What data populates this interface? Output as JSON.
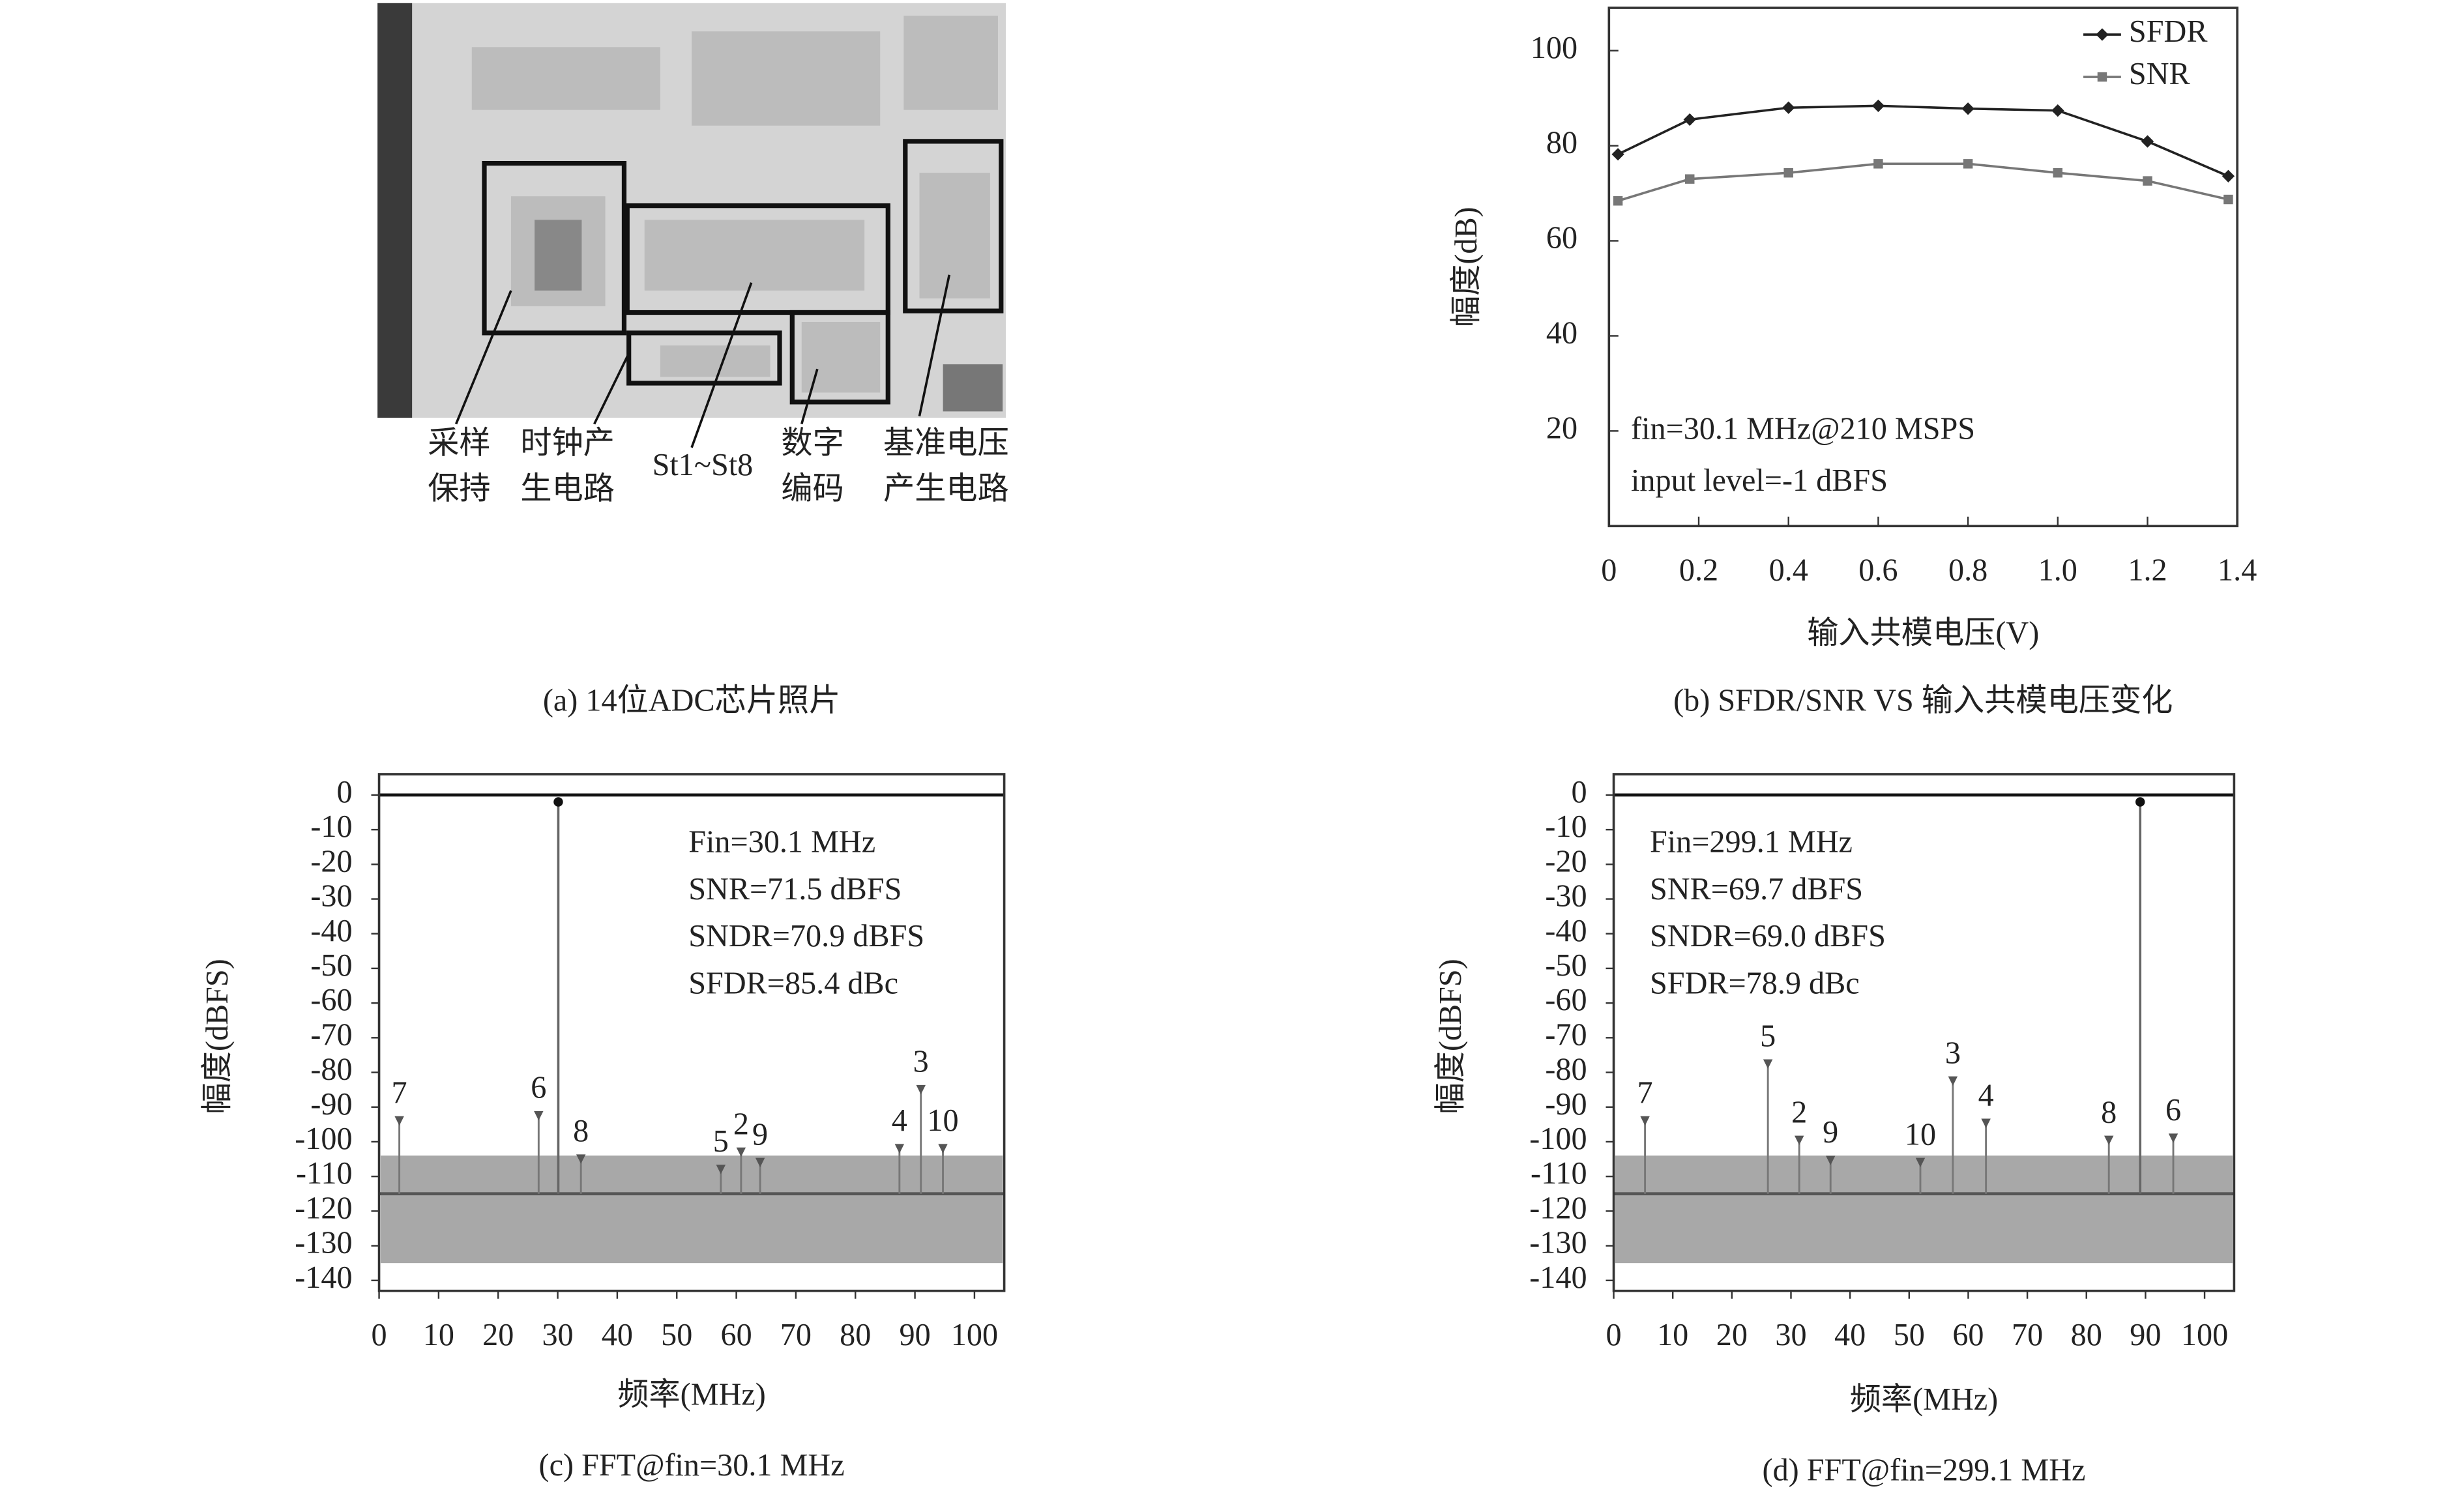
{
  "figure_a": {
    "labels": [
      [
        "采样",
        "保持"
      ],
      [
        "时钟产",
        "生电路"
      ],
      [
        "St1~St8"
      ],
      [
        "数字",
        "编码"
      ],
      [
        "基准电压",
        "产生电路"
      ]
    ],
    "caption": "(a) 14位ADC芯片照片"
  },
  "chart_data": [
    {
      "type": "line",
      "caption": "(b) SFDR/SNR VS 输入共模电压变化",
      "xlabel": "输入共模电压(V)",
      "ylabel": "幅度(dB)",
      "x": [
        0.02,
        0.18,
        0.4,
        0.6,
        0.8,
        1.0,
        1.2,
        1.38
      ],
      "series": [
        {
          "name": "SFDR",
          "color": "#222222",
          "marker": "diamond",
          "values": [
            78.2,
            85.5,
            88,
            88.4,
            87.8,
            87.4,
            80.9,
            73.6
          ]
        },
        {
          "name": "SNR",
          "color": "#777777",
          "marker": "square",
          "values": [
            68.4,
            73,
            74.3,
            76.2,
            76.2,
            74.3,
            72.6,
            68.7
          ]
        }
      ],
      "xlim": [
        0,
        1.4
      ],
      "xticks": [
        0,
        0.2,
        0.4,
        0.6,
        0.8,
        {
          "value": 1,
          "label": "1.0"
        },
        1.2,
        1.4
      ],
      "ylim": [
        0,
        109
      ],
      "yticks": [
        20,
        40,
        60,
        80,
        100
      ],
      "legend": "top-right",
      "annotations": [
        "fin=30.1 MHz@210 MSPS",
        "input level=-1 dBFS"
      ]
    },
    {
      "type": "fft",
      "caption": "(c) FFT@fin=30.1 MHz",
      "xlabel": "频率(MHz)",
      "ylabel": "幅度(dBFS)",
      "xlim": [
        0,
        105
      ],
      "xticks": [
        0,
        10,
        20,
        30,
        40,
        50,
        60,
        70,
        80,
        90,
        100
      ],
      "ylim": [
        -143,
        6
      ],
      "yticks": [
        0,
        -10,
        -20,
        -30,
        -40,
        -50,
        -60,
        -70,
        -80,
        -90,
        -100,
        -110,
        -120,
        -130,
        -140
      ],
      "full_scale": 0,
      "noise_floor": -115,
      "noise_band": [
        -135,
        -104
      ],
      "fundamental": {
        "x": 30.1,
        "value": -2
      },
      "spurs": {
        "labels": [
          7,
          6,
          8,
          5,
          2,
          9,
          4,
          3,
          10
        ],
        "x": [
          3.4,
          26.8,
          33.9,
          57.4,
          60.8,
          64,
          87.4,
          91,
          94.7
        ],
        "values": [
          -94,
          -92.5,
          -105,
          -108,
          -103,
          -106,
          -102,
          -85,
          -102
        ]
      },
      "annotations": [
        "Fin=30.1 MHz",
        "SNR=71.5 dBFS",
        "SNDR=70.9 dBFS",
        "SFDR=85.4 dBc"
      ]
    },
    {
      "type": "fft",
      "caption": "(d) FFT@fin=299.1 MHz",
      "xlabel": "频率(MHz)",
      "ylabel": "幅度(dBFS)",
      "xlim": [
        0,
        105
      ],
      "xticks": [
        0,
        10,
        20,
        30,
        40,
        50,
        60,
        70,
        80,
        90,
        100
      ],
      "ylim": [
        -143,
        6
      ],
      "yticks": [
        0,
        -10,
        -20,
        -30,
        -40,
        -50,
        -60,
        -70,
        -80,
        -90,
        -100,
        -110,
        -120,
        -130,
        -140
      ],
      "full_scale": 0,
      "noise_floor": -115,
      "noise_band": [
        -135,
        -104
      ],
      "fundamental": {
        "x": 89.1,
        "value": -2
      },
      "spurs": {
        "labels": [
          7,
          5,
          2,
          9,
          10,
          3,
          4,
          8,
          6
        ],
        "x": [
          5.3,
          26.1,
          31.4,
          36.7,
          51.9,
          57.4,
          63,
          83.8,
          94.7
        ],
        "values": [
          -94,
          -77.6,
          -99.6,
          -105.4,
          -106,
          -82.5,
          -94.7,
          -99.6,
          -99
        ]
      },
      "annotations": [
        "Fin=299.1 MHz",
        "SNR=69.7 dBFS",
        "SNDR=69.0 dBFS",
        "SFDR=78.9 dBc"
      ]
    }
  ]
}
